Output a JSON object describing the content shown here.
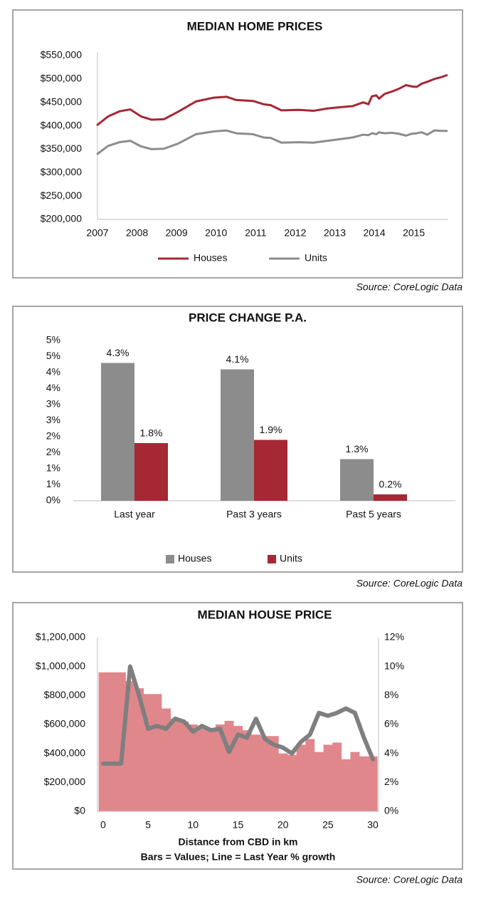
{
  "chart_data": [
    {
      "type": "line",
      "title": "MEDIAN HOME PRICES",
      "source": "Source: CoreLogic Data",
      "x": [
        2007.0,
        2007.27,
        2007.56,
        2007.83,
        2008.1,
        2008.37,
        2008.68,
        2009.04,
        2009.49,
        2009.94,
        2010.26,
        2010.51,
        2010.93,
        2011.2,
        2011.38,
        2011.65,
        2012.1,
        2012.46,
        2012.82,
        2013.18,
        2013.45,
        2013.72,
        2013.85,
        2013.94,
        2014.05,
        2014.12,
        2014.26,
        2014.44,
        2014.62,
        2014.8,
        2014.95,
        2015.07,
        2015.2,
        2015.34,
        2015.52,
        2015.7,
        2015.83
      ],
      "series": [
        {
          "name": "Houses",
          "color": "#a52834",
          "values": [
            402000,
            420000,
            431000,
            435000,
            420000,
            413000,
            414000,
            430000,
            452000,
            460000,
            462000,
            455000,
            453000,
            446000,
            444000,
            433000,
            434000,
            432000,
            437000,
            440000,
            442000,
            450000,
            446000,
            463000,
            465000,
            458000,
            468000,
            473000,
            479000,
            487000,
            484000,
            483000,
            490000,
            494000,
            500000,
            504000,
            508000
          ]
        },
        {
          "name": "Units",
          "color": "#8c8c8c",
          "values": [
            340000,
            357000,
            365000,
            368000,
            356000,
            350000,
            351000,
            362000,
            382000,
            388000,
            390000,
            384000,
            382000,
            375000,
            374000,
            364000,
            365000,
            364000,
            368000,
            372000,
            375000,
            381000,
            380000,
            384000,
            382000,
            386000,
            384000,
            385000,
            383000,
            379000,
            383000,
            384000,
            386000,
            381000,
            390000,
            389000,
            389000
          ]
        }
      ],
      "xlim": [
        2007,
        2015.87
      ],
      "xticks": [
        2007,
        2008,
        2009,
        2010,
        2011,
        2012,
        2013,
        2014,
        2015
      ],
      "ylim": [
        200000,
        550000
      ],
      "yticks": [
        {
          "value": 200000,
          "label": "$200,000"
        },
        {
          "value": 250000,
          "label": "$250,000"
        },
        {
          "value": 300000,
          "label": "$300,000"
        },
        {
          "value": 350000,
          "label": "$350,000"
        },
        {
          "value": 400000,
          "label": "$400,000"
        },
        {
          "value": 450000,
          "label": "$450,000"
        },
        {
          "value": 500000,
          "label": "$500,000"
        },
        {
          "value": 550000,
          "label": "$550,000"
        }
      ],
      "grid": false,
      "legend": "bottom"
    },
    {
      "type": "bar",
      "title": "PRICE CHANGE P.A.",
      "source": "Source: CoreLogic Data",
      "categories": [
        "Last year",
        "Past 3 years",
        "Past 5 years"
      ],
      "series": [
        {
          "name": "Houses",
          "color": "#8c8c8c",
          "values": [
            4.3,
            4.1,
            1.3
          ],
          "value_labels": [
            "4.3%",
            "4.1%",
            "1.3%"
          ]
        },
        {
          "name": "Units",
          "color": "#a52834",
          "values": [
            1.8,
            1.9,
            0.2
          ],
          "value_labels": [
            "1.8%",
            "1.9%",
            "0.2%"
          ]
        }
      ],
      "ylim": [
        0,
        5
      ],
      "yticks": [
        {
          "value": 0,
          "label": "0%"
        },
        {
          "value": 0.5,
          "label": "1%"
        },
        {
          "value": 1,
          "label": "1%"
        },
        {
          "value": 1.5,
          "label": "2%"
        },
        {
          "value": 2,
          "label": "2%"
        },
        {
          "value": 2.5,
          "label": "3%"
        },
        {
          "value": 3,
          "label": "3%"
        },
        {
          "value": 3.5,
          "label": "4%"
        },
        {
          "value": 4,
          "label": "4%"
        },
        {
          "value": 4.5,
          "label": "5%"
        },
        {
          "value": 5,
          "label": "5%"
        }
      ],
      "grid": false,
      "legend": "bottom"
    },
    {
      "type": "combo",
      "title": "MEDIAN HOUSE PRICE",
      "source": "Source: CoreLogic Data",
      "x_label": "Distance from CBD in km",
      "subtitle": "Bars = Values; Line = Last Year % growth",
      "x": [
        0,
        1,
        2,
        3,
        4,
        5,
        6,
        7,
        8,
        9,
        10,
        11,
        12,
        13,
        14,
        15,
        16,
        17,
        18,
        19,
        20,
        21,
        22,
        23,
        24,
        25,
        26,
        27,
        28,
        29,
        30
      ],
      "series": [
        {
          "type": "bar",
          "color": "#e0878c",
          "values": [
            960000,
            960000,
            960000,
            900000,
            850000,
            810000,
            810000,
            710000,
            640000,
            620000,
            600000,
            580000,
            570000,
            600000,
            625000,
            590000,
            560000,
            530000,
            520000,
            520000,
            400000,
            390000,
            460000,
            500000,
            410000,
            460000,
            475000,
            360000,
            410000,
            380000,
            380000
          ]
        },
        {
          "type": "line",
          "color": "#7f7f7f",
          "axis": "y2",
          "values": [
            3.3,
            3.3,
            3.3,
            10,
            8,
            5.7,
            5.9,
            5.7,
            6.4,
            6.2,
            5.5,
            5.9,
            5.6,
            5.7,
            4.1,
            5.3,
            5.1,
            6.4,
            5.0,
            4.6,
            4.4,
            4.0,
            4.8,
            5.3,
            6.8,
            6.6,
            6.8,
            7.1,
            6.8,
            5.1,
            3.6
          ]
        }
      ],
      "xlim": [
        -0.63,
        30.63
      ],
      "xticks": [
        0,
        5,
        10,
        15,
        20,
        25,
        30
      ],
      "ylim": [
        0,
        1200000
      ],
      "yticks": [
        {
          "value": 0,
          "label": "$0"
        },
        {
          "value": 200000,
          "label": "$200,000"
        },
        {
          "value": 400000,
          "label": "$400,000"
        },
        {
          "value": 600000,
          "label": "$600,000"
        },
        {
          "value": 800000,
          "label": "$800,000"
        },
        {
          "value": 1000000,
          "label": "$1,000,000"
        },
        {
          "value": 1200000,
          "label": "$1,200,000"
        }
      ],
      "y2lim": [
        0,
        12
      ],
      "y2ticks": [
        {
          "value": 0,
          "label": "0%"
        },
        {
          "value": 2,
          "label": "2%"
        },
        {
          "value": 4,
          "label": "4%"
        },
        {
          "value": 6,
          "label": "6%"
        },
        {
          "value": 8,
          "label": "8%"
        },
        {
          "value": 10,
          "label": "10%"
        },
        {
          "value": 12,
          "label": "12%"
        }
      ],
      "grid": false
    }
  ]
}
